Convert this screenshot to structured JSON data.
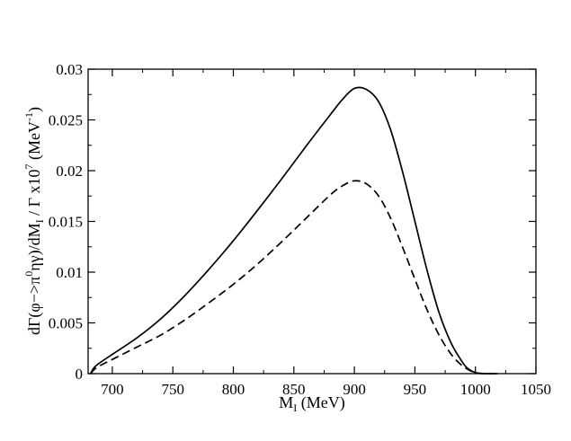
{
  "chart_data": {
    "type": "line",
    "title": "",
    "xlabel": {
      "main": "M",
      "sub": "I",
      "unit": " (MeV)"
    },
    "ylabel": {
      "p1": "dΓ(φ−>π",
      "sup1": "0",
      "p2": "ηγ)/dM",
      "sub1": "I",
      "p3": " / Γ  x10",
      "sup2": "7",
      "p4": " (MeV",
      "sup3": "-1",
      "p5": ")"
    },
    "xlim": [
      680,
      1050
    ],
    "ylim": [
      0,
      0.03
    ],
    "xticks": [
      700,
      750,
      800,
      850,
      900,
      950,
      1000,
      1050
    ],
    "yticks": [
      0,
      0.005,
      0.01,
      0.015,
      0.02,
      0.025,
      0.03
    ],
    "xtick_labels": [
      "700",
      "750",
      "800",
      "850",
      "900",
      "950",
      "1000",
      "1050"
    ],
    "ytick_labels": [
      "0",
      "0.005",
      "0.01",
      "0.015",
      "0.02",
      "0.025",
      "0.03"
    ],
    "series": [
      {
        "name": "solid",
        "style": "solid",
        "color": "#000000",
        "x": [
          682,
          685,
          690,
          700,
          720,
          740,
          760,
          780,
          800,
          820,
          840,
          860,
          880,
          890,
          900,
          910,
          920,
          930,
          940,
          950,
          960,
          970,
          980,
          990,
          995,
          1000,
          1005,
          1010,
          1015
        ],
        "y": [
          0,
          0.0006,
          0.0011,
          0.0019,
          0.0035,
          0.0054,
          0.0077,
          0.0103,
          0.0131,
          0.0161,
          0.0192,
          0.0224,
          0.0255,
          0.027,
          0.0281,
          0.028,
          0.0268,
          0.024,
          0.0198,
          0.015,
          0.0102,
          0.006,
          0.003,
          0.001,
          0.0004,
          0.0001,
          2e-05,
          0,
          0
        ]
      },
      {
        "name": "dashed",
        "style": "dashed",
        "color": "#000000",
        "x": [
          682,
          685,
          690,
          700,
          720,
          740,
          760,
          780,
          800,
          820,
          840,
          860,
          880,
          890,
          900,
          910,
          920,
          930,
          940,
          950,
          960,
          970,
          980,
          990,
          1000,
          1010,
          1020
        ],
        "y": [
          0,
          0.0004,
          0.0008,
          0.0014,
          0.0026,
          0.0038,
          0.0053,
          0.007,
          0.0088,
          0.0108,
          0.013,
          0.0153,
          0.0176,
          0.0185,
          0.019,
          0.0187,
          0.0175,
          0.0153,
          0.0124,
          0.0093,
          0.0063,
          0.0038,
          0.0019,
          0.0007,
          0.0001,
          0,
          0
        ]
      }
    ]
  }
}
